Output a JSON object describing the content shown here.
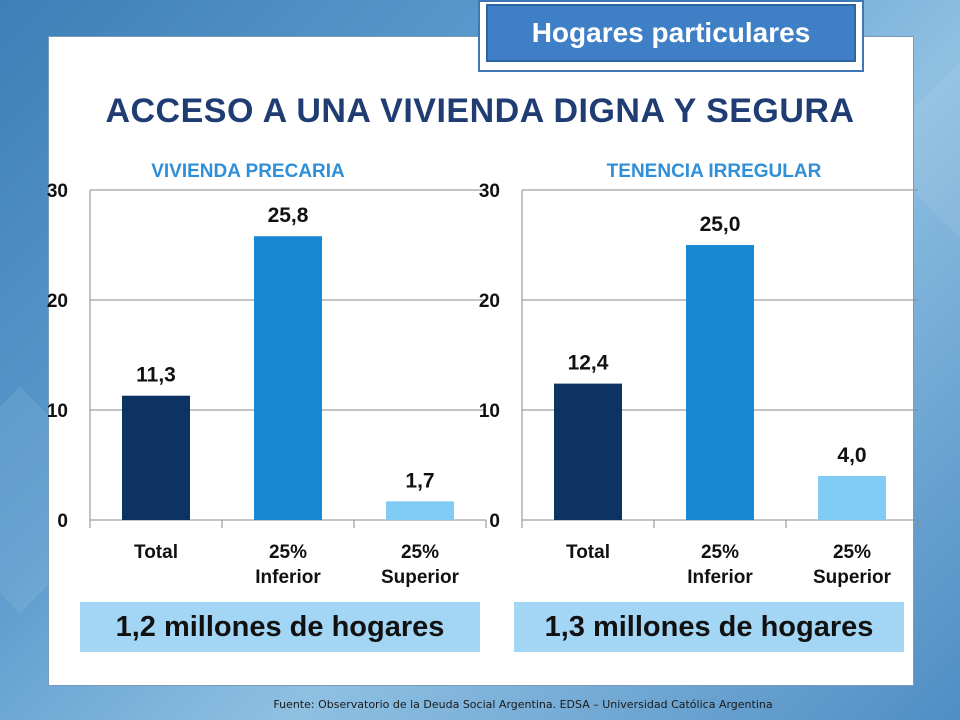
{
  "badge": "Hogares particulares",
  "title": "ACCESO A UNA VIVIENDA DIGNA Y SEGURA",
  "source": "Fuente:  Observatorio de  la Deuda Social Argentina. EDSA  – Universidad Católica Argentina",
  "colors": {
    "bar_total": "#0d3363",
    "bar_inferior": "#1a87d4",
    "bar_superior": "#80ccf5",
    "subtitle": "#2f8fd8",
    "title": "#1f3d73"
  },
  "chart_data": [
    {
      "type": "bar",
      "title": "VIVIENDA PRECARIA",
      "categories": [
        "Total",
        "25% Inferior",
        "25% Superior"
      ],
      "category_lines": [
        [
          "Total"
        ],
        [
          "25%",
          "Inferior"
        ],
        [
          "25%",
          "Superior"
        ]
      ],
      "values": [
        11.3,
        25.8,
        1.7
      ],
      "value_labels": [
        "11,3",
        "25,8",
        "1,7"
      ],
      "ylim": [
        0,
        30
      ],
      "yticks": [
        0,
        10,
        20,
        30
      ],
      "grid": true,
      "legend": "none",
      "summary": "1,2 millones de hogares"
    },
    {
      "type": "bar",
      "title": "TENENCIA IRREGULAR",
      "categories": [
        "Total",
        "25% Inferior",
        "25% Superior"
      ],
      "category_lines": [
        [
          "Total"
        ],
        [
          "25%",
          "Inferior"
        ],
        [
          "25%",
          "Superior"
        ]
      ],
      "values": [
        12.4,
        25.0,
        4.0
      ],
      "value_labels": [
        "12,4",
        "25,0",
        "4,0"
      ],
      "ylim": [
        0,
        30
      ],
      "yticks": [
        0,
        10,
        20,
        30
      ],
      "grid": true,
      "legend": "none",
      "summary": "1,3 millones de hogares"
    }
  ]
}
